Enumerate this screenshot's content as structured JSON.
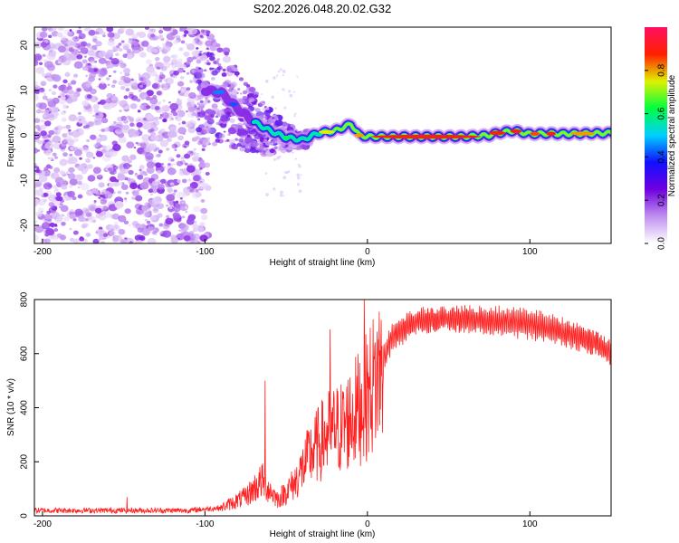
{
  "title": "S202.2026.048.20.02.G32",
  "chart_data": [
    {
      "type": "heatmap",
      "name": "spectrogram",
      "xlabel": "Height of straight line (km)",
      "ylabel": "Frequency (Hz)",
      "xlim": [
        -205,
        150
      ],
      "ylim": [
        -24,
        24
      ],
      "xticks": [
        -200,
        -100,
        0,
        100
      ],
      "xtick_labels": [
        "-200",
        "-100",
        "0",
        "100"
      ],
      "yticks": [
        20,
        10,
        0,
        -10,
        -20
      ],
      "ytick_labels": [
        "20",
        "10",
        "0",
        "-10",
        "-20"
      ],
      "colorbar": {
        "label": "Normalized spectral amplitude",
        "range": [
          0,
          1
        ],
        "ticks": [
          0.0,
          0.2,
          0.4,
          0.6,
          0.8
        ],
        "tick_labels": [
          "0.0",
          "0.2",
          "0.4",
          "0.6",
          "0.8"
        ],
        "colors": [
          "#ffffff",
          "#c090f0",
          "#7000e0",
          "#1010ff",
          "#00d0ff",
          "#00ff40",
          "#e0f000",
          "#ff2000",
          "#ff1060"
        ]
      },
      "ridge": {
        "x": [
          -100,
          -90,
          -80,
          -70,
          -60,
          -50,
          -40,
          -30,
          -20,
          -10,
          -5,
          0,
          20,
          40,
          60,
          75,
          80,
          90,
          100,
          110,
          120,
          150
        ],
        "y": [
          10,
          9.5,
          6,
          3,
          1,
          -0.5,
          -1,
          0.5,
          1,
          2.5,
          0,
          -0.3,
          -0.3,
          -0.3,
          -0.3,
          0,
          0.5,
          1,
          0.3,
          0.4,
          0.3,
          0.5
        ]
      }
    },
    {
      "type": "line",
      "name": "snr",
      "xlabel": "Height of straight line (km)",
      "ylabel": "SNR (10 * v/v)",
      "xlim": [
        -205,
        150
      ],
      "ylim": [
        0,
        800
      ],
      "xticks": [
        -200,
        -100,
        0,
        100
      ],
      "xtick_labels": [
        "-200",
        "-100",
        "0",
        "100"
      ],
      "yticks": [
        0,
        200,
        400,
        600,
        800
      ],
      "ytick_labels": [
        "0",
        "200",
        "400",
        "600",
        "800"
      ],
      "color": "#ff2020",
      "envelope": {
        "x": [
          -205,
          -110,
          -90,
          -75,
          -65,
          -55,
          -45,
          -35,
          -25,
          -15,
          -5,
          5,
          15,
          30,
          50,
          80,
          100,
          120,
          140,
          150
        ],
        "y": [
          20,
          20,
          30,
          70,
          130,
          60,
          120,
          230,
          300,
          330,
          400,
          500,
          660,
          720,
          730,
          720,
          710,
          680,
          640,
          600
        ]
      },
      "spikes": [
        {
          "x": -148,
          "y": 70
        },
        {
          "x": -63,
          "y": 500
        },
        {
          "x": -23,
          "y": 690
        },
        {
          "x": -2,
          "y": 810
        },
        {
          "x": -20,
          "y": 340
        }
      ]
    }
  ]
}
